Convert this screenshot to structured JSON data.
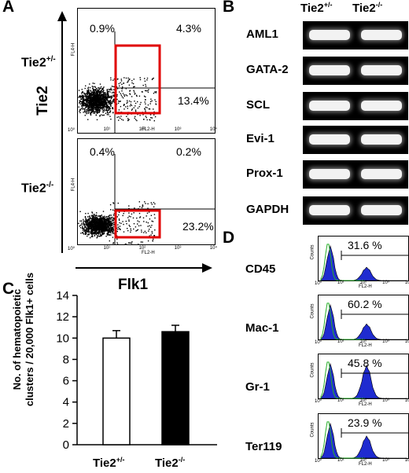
{
  "panels": {
    "A": "A",
    "B": "B",
    "C": "C",
    "D": "D"
  },
  "panel_a": {
    "y_axis_label": "Tie2",
    "x_axis_label": "Flk1",
    "plot_y_axis": "FL4-H",
    "plot_x_axis": "FL2-H",
    "log_ticks": [
      "10⁰",
      "10¹",
      "10²",
      "10³",
      "10⁴"
    ],
    "rows": [
      {
        "genotype": "Tie2",
        "superscript": "+/-",
        "q_ul": "0.9%",
        "q_ur": "4.3%",
        "q_lr": "13.4%"
      },
      {
        "genotype": "Tie2",
        "superscript": "-/-",
        "q_ul": "0.4%",
        "q_ur": "0.2%",
        "q_lr": "23.2%"
      }
    ]
  },
  "panel_b": {
    "columns": [
      {
        "label": "Tie2",
        "sup": "+/-"
      },
      {
        "label": "Tie2",
        "sup": "-/-"
      }
    ],
    "genes": [
      "AML1",
      "GATA-2",
      "SCL",
      "Evi-1",
      "Prox-1",
      "GAPDH"
    ]
  },
  "panel_c": {
    "ylabel_line1": "No. of hematopoietic",
    "ylabel_line2": "clusters  / 20,000 Flk1+ cells",
    "cat1": {
      "label": "Tie2",
      "sup": "+/-"
    },
    "cat2": {
      "label": "Tie2",
      "sup": "-/-"
    },
    "ticks": [
      "0",
      "2",
      "4",
      "6",
      "8",
      "10",
      "12",
      "14"
    ]
  },
  "panel_d": {
    "y_axis": "Counts",
    "x_axis": "FL2-H",
    "markers": [
      "CD45",
      "Mac-1",
      "Gr-1",
      "Ter119"
    ],
    "percents": [
      "31.6 %",
      "60.2 %",
      "45.8 %",
      "23.9 %"
    ]
  },
  "chart_data": [
    {
      "type": "bar",
      "categories": [
        "Tie2+/-",
        "Tie2-/-"
      ],
      "values": [
        10.0,
        10.6
      ],
      "errors": [
        0.7,
        0.6
      ],
      "colors": [
        "#ffffff",
        "#000000"
      ],
      "title": "",
      "xlabel": "",
      "ylabel": "No. of hematopoietic clusters / 20,000 Flk1+ cells",
      "ylim": [
        0,
        14
      ]
    },
    {
      "type": "area",
      "title": "",
      "xlabel": "FL2-H",
      "ylabel": "Counts",
      "series": [
        {
          "name": "CD45",
          "marker_positive_percent": 31.6
        },
        {
          "name": "Mac-1",
          "marker_positive_percent": 60.2
        },
        {
          "name": "Gr-1",
          "marker_positive_percent": 45.8
        },
        {
          "name": "Ter119",
          "marker_positive_percent": 23.9
        }
      ]
    }
  ]
}
